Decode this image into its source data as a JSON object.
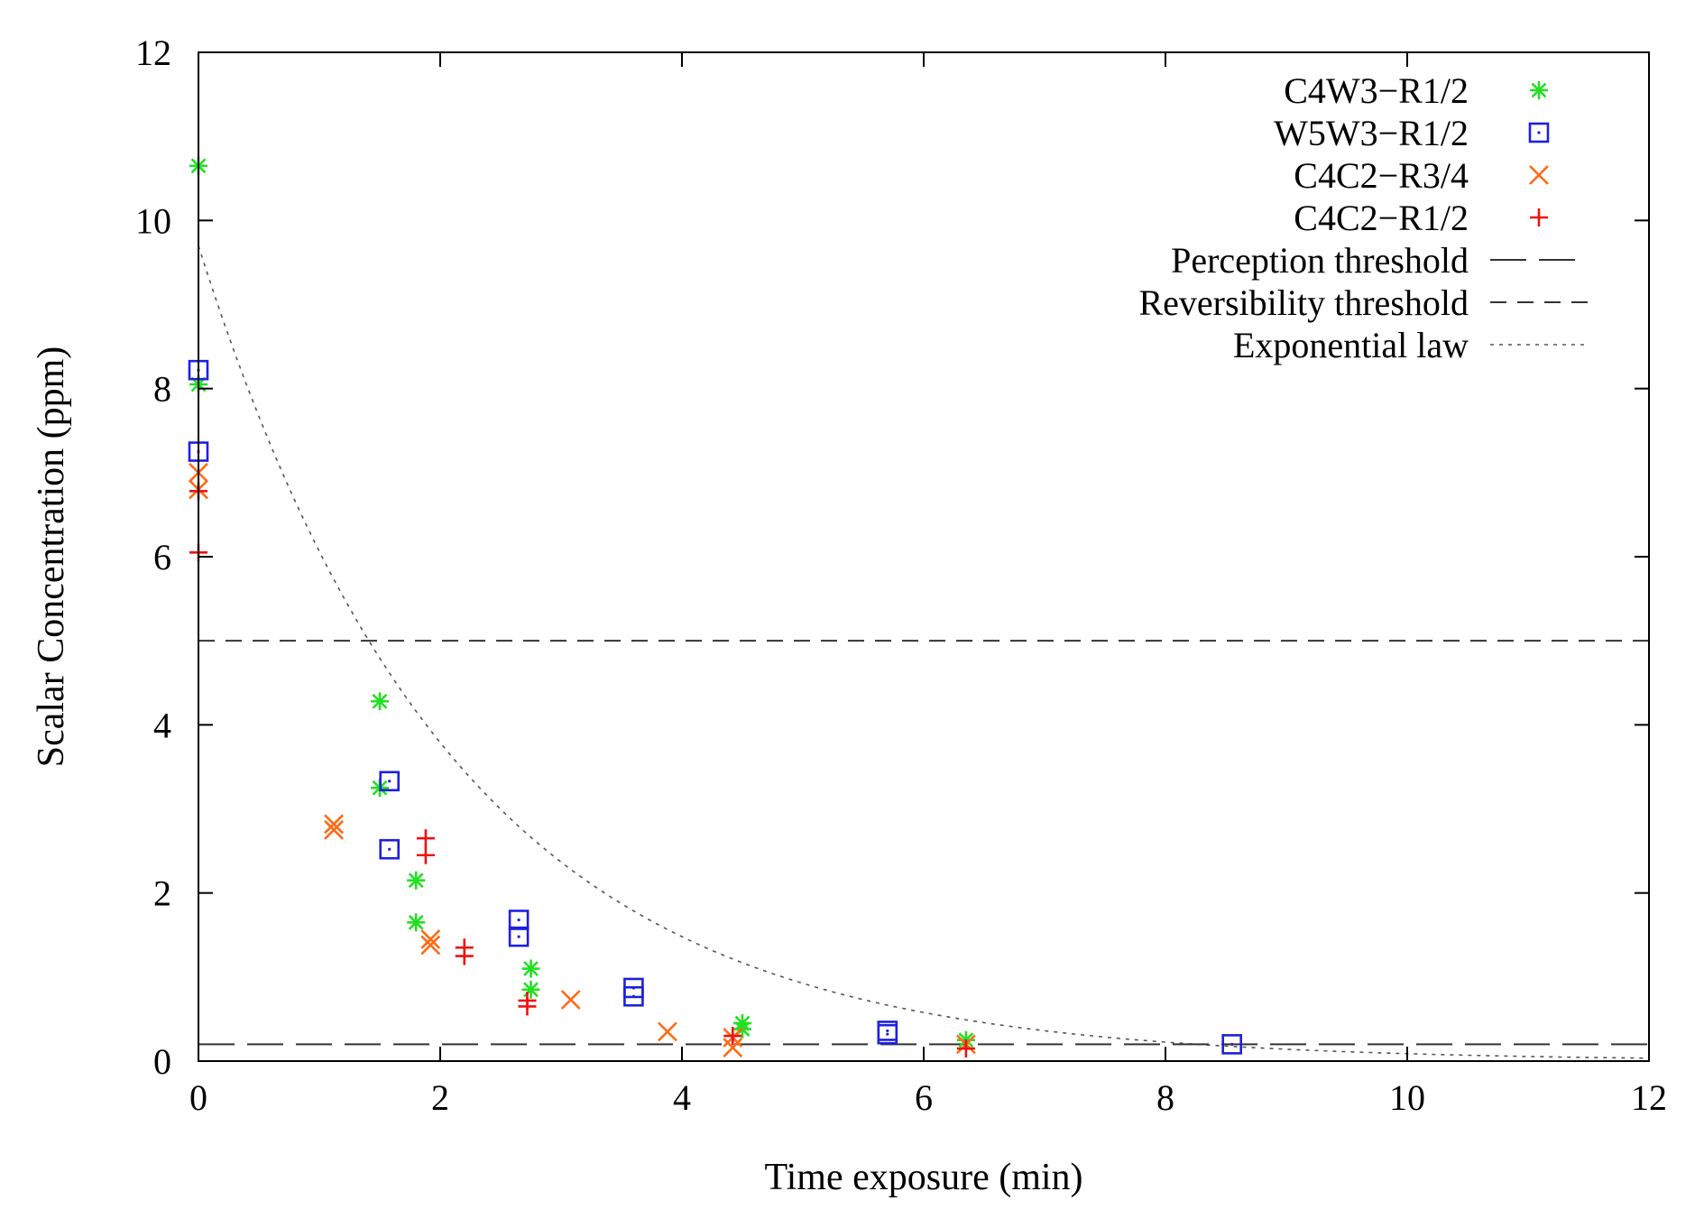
{
  "chart_data": {
    "type": "scatter",
    "title": "",
    "xlabel": "Time exposure (min)",
    "ylabel": "Scalar Concentration (ppm)",
    "xlim": [
      0,
      12
    ],
    "ylim": [
      0,
      12
    ],
    "xticks": [
      0,
      2,
      4,
      6,
      8,
      10,
      12
    ],
    "yticks": [
      0,
      2,
      4,
      6,
      8,
      10,
      12
    ],
    "grid": false,
    "legend_position": "top-right",
    "series": [
      {
        "name": "C4W3−R1/2",
        "marker": "star",
        "color": "#22e022",
        "points": [
          [
            0,
            10.65
          ],
          [
            0,
            8.05
          ],
          [
            1.5,
            4.28
          ],
          [
            1.5,
            3.25
          ],
          [
            1.8,
            2.15
          ],
          [
            1.8,
            1.65
          ],
          [
            2.75,
            1.1
          ],
          [
            2.75,
            0.85
          ],
          [
            4.5,
            0.45
          ],
          [
            4.5,
            0.38
          ],
          [
            6.35,
            0.25
          ]
        ]
      },
      {
        "name": "W5W3−R1/2",
        "marker": "square",
        "color": "#1f1fe0",
        "points": [
          [
            0,
            8.22
          ],
          [
            0,
            7.25
          ],
          [
            1.58,
            3.33
          ],
          [
            1.58,
            2.52
          ],
          [
            2.65,
            1.68
          ],
          [
            2.65,
            1.48
          ],
          [
            3.6,
            0.87
          ],
          [
            3.6,
            0.77
          ],
          [
            5.7,
            0.36
          ],
          [
            5.7,
            0.32
          ],
          [
            8.55,
            0.2
          ]
        ]
      },
      {
        "name": "C4C2−R3/4",
        "marker": "x",
        "color": "#ff6a13",
        "points": [
          [
            0,
            7.0
          ],
          [
            0,
            6.8
          ],
          [
            1.12,
            2.82
          ],
          [
            1.12,
            2.75
          ],
          [
            1.92,
            1.45
          ],
          [
            1.92,
            1.38
          ],
          [
            3.08,
            0.73
          ],
          [
            3.88,
            0.35
          ],
          [
            4.42,
            0.28
          ],
          [
            4.42,
            0.16
          ],
          [
            6.35,
            0.2
          ]
        ]
      },
      {
        "name": "C4C2−R1/2",
        "marker": "plus",
        "color": "#ee1111",
        "points": [
          [
            0,
            6.78
          ],
          [
            0,
            6.05
          ],
          [
            1.88,
            2.65
          ],
          [
            1.88,
            2.45
          ],
          [
            2.2,
            1.35
          ],
          [
            2.2,
            1.25
          ],
          [
            2.72,
            0.72
          ],
          [
            2.72,
            0.65
          ],
          [
            4.42,
            0.3
          ],
          [
            6.35,
            0.15
          ]
        ]
      }
    ],
    "reference_lines": [
      {
        "name": "Perception threshold",
        "value": 0.2,
        "style": "long-dash"
      },
      {
        "name": "Reversibility threshold",
        "value": 5,
        "style": "short-dash"
      }
    ],
    "curve": {
      "name": "Exponential law",
      "style": "dotted",
      "formula": "y = a * exp(-b * x)",
      "a": 9.7,
      "b": 0.47,
      "x_range": [
        0,
        12
      ]
    }
  }
}
